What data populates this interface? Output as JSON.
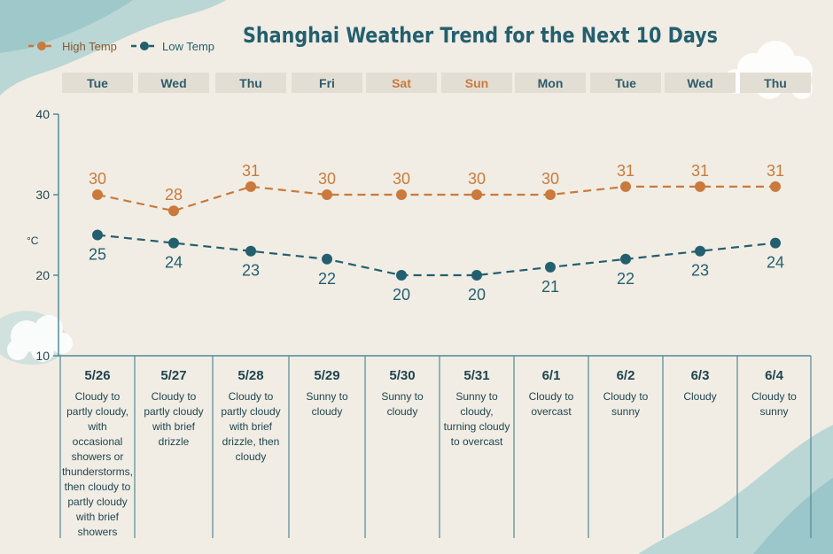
{
  "chart_data": {
    "type": "line",
    "title": "Shanghai Weather Trend for the Next 10 Days",
    "ylabel": "°C",
    "ylim": [
      10,
      40
    ],
    "yticks": [
      10,
      20,
      30,
      40
    ],
    "legend_position": "top-left",
    "days": [
      "Tue",
      "Wed",
      "Thu",
      "Fri",
      "Sat",
      "Sun",
      "Mon",
      "Tue",
      "Wed",
      "Thu"
    ],
    "weekend_flags": [
      false,
      false,
      false,
      false,
      true,
      true,
      false,
      false,
      false,
      false
    ],
    "dates": [
      "5/26",
      "5/27",
      "5/28",
      "5/29",
      "5/30",
      "5/31",
      "6/1",
      "6/2",
      "6/3",
      "6/4"
    ],
    "series": [
      {
        "name": "High Temp",
        "color": "#c97a3c",
        "values": [
          30,
          28,
          31,
          30,
          30,
          30,
          30,
          31,
          31,
          31
        ]
      },
      {
        "name": "Low Temp",
        "color": "#245f6f",
        "values": [
          25,
          24,
          23,
          22,
          20,
          20,
          21,
          22,
          23,
          24
        ]
      }
    ],
    "descriptions": [
      "Cloudy to partly cloudy, with occasional showers or thunderstorms, then cloudy to partly cloudy with brief showers",
      "Cloudy to partly cloudy with brief drizzle",
      "Cloudy to partly cloudy with brief drizzle, then cloudy",
      "Sunny to cloudy",
      "Sunny to cloudy",
      "Sunny to cloudy, turning cloudy to overcast",
      "Cloudy to overcast",
      "Cloudy to sunny",
      "Cloudy",
      "Cloudy to sunny"
    ]
  },
  "colors": {
    "background": "#f1ede4",
    "title": "#245f6f",
    "axis": "#4f8b98",
    "day_band": "#e3ded4",
    "day_text": "#2d5c6a",
    "weekend_text": "#c97a3c",
    "text": "#1f4550",
    "watercolor": "#8cc3c9"
  }
}
